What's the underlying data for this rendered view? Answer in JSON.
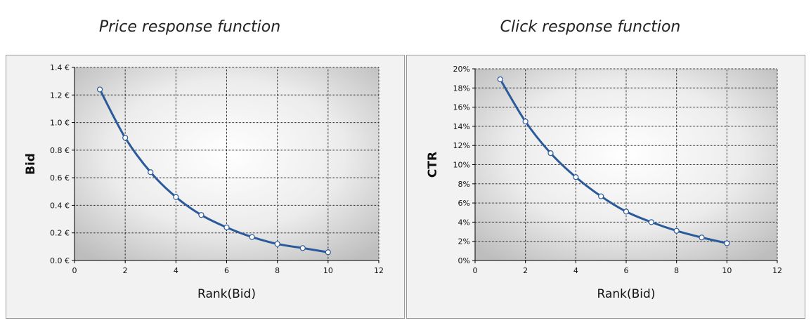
{
  "chart_data": [
    {
      "type": "line",
      "title": "Price response function",
      "xlabel": "Rank(Bid)",
      "ylabel": "Bid",
      "xlim": [
        0,
        12
      ],
      "ylim": [
        0,
        1.4
      ],
      "xticks": [
        "0",
        "2",
        "4",
        "6",
        "8",
        "10",
        "12"
      ],
      "yticks": [
        "0.0 €",
        "0.2 €",
        "0.4 €",
        "0.6 €",
        "0.8 €",
        "1.0 €",
        "1.2 €",
        "1.4 €"
      ],
      "grid": true,
      "series": [
        {
          "x": [
            1,
            2,
            3,
            4,
            5,
            6,
            7,
            8,
            9,
            10
          ],
          "y": [
            1.24,
            0.89,
            0.64,
            0.46,
            0.33,
            0.24,
            0.17,
            0.12,
            0.09,
            0.06
          ]
        }
      ]
    },
    {
      "type": "line",
      "title": "Click response function",
      "xlabel": "Rank(Bid)",
      "ylabel": "CTR",
      "xlim": [
        0,
        12
      ],
      "ylim": [
        0,
        0.2
      ],
      "xticks": [
        "0",
        "2",
        "4",
        "6",
        "8",
        "10",
        "12"
      ],
      "yticks": [
        "0%",
        "2%",
        "4%",
        "6%",
        "8%",
        "10%",
        "12%",
        "14%",
        "16%",
        "18%",
        "20%"
      ],
      "grid": true,
      "series": [
        {
          "x": [
            1,
            2,
            3,
            4,
            5,
            6,
            7,
            8,
            9,
            10
          ],
          "y": [
            0.189,
            0.145,
            0.112,
            0.087,
            0.067,
            0.051,
            0.04,
            0.031,
            0.024,
            0.018
          ]
        }
      ]
    }
  ],
  "colors": {
    "line": "#2b5a9b",
    "marker_fill": "#ffffff",
    "grid": "#222222"
  }
}
